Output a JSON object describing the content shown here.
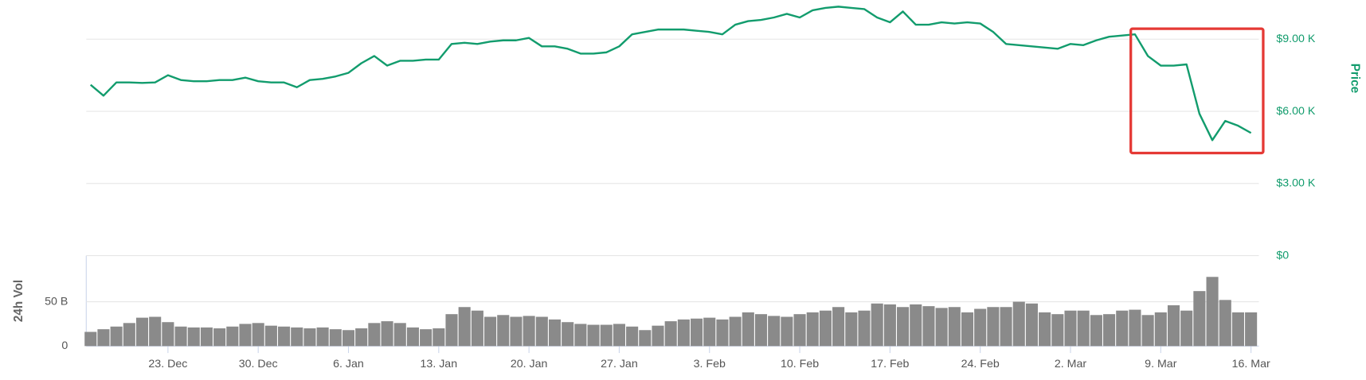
{
  "chart_data": {
    "type": "line",
    "categories": [
      "17. Dec",
      "18. Dec",
      "19. Dec",
      "20. Dec",
      "21. Dec",
      "22. Dec",
      "23. Dec",
      "24. Dec",
      "25. Dec",
      "26. Dec",
      "27. Dec",
      "28. Dec",
      "29. Dec",
      "30. Dec",
      "31. Dec",
      "1. Jan",
      "2. Jan",
      "3. Jan",
      "4. Jan",
      "5. Jan",
      "6. Jan",
      "7. Jan",
      "8. Jan",
      "9. Jan",
      "10. Jan",
      "11. Jan",
      "12. Jan",
      "13. Jan",
      "14. Jan",
      "15. Jan",
      "16. Jan",
      "17. Jan",
      "18. Jan",
      "19. Jan",
      "20. Jan",
      "21. Jan",
      "22. Jan",
      "23. Jan",
      "24. Jan",
      "25. Jan",
      "26. Jan",
      "27. Jan",
      "28. Jan",
      "29. Jan",
      "30. Jan",
      "31. Jan",
      "1. Feb",
      "2. Feb",
      "3. Feb",
      "4. Feb",
      "5. Feb",
      "6. Feb",
      "7. Feb",
      "8. Feb",
      "9. Feb",
      "10. Feb",
      "11. Feb",
      "12. Feb",
      "13. Feb",
      "14. Feb",
      "15. Feb",
      "16. Feb",
      "17. Feb",
      "18. Feb",
      "19. Feb",
      "20. Feb",
      "21. Feb",
      "22. Feb",
      "23. Feb",
      "24. Feb",
      "25. Feb",
      "26. Feb",
      "27. Feb",
      "28. Feb",
      "29. Feb",
      "1. Mar",
      "2. Mar",
      "3. Mar",
      "4. Mar",
      "5. Mar",
      "6. Mar",
      "7. Mar",
      "8. Mar",
      "9. Mar",
      "10. Mar",
      "11. Mar",
      "12. Mar",
      "13. Mar",
      "14. Mar",
      "15. Mar",
      "16. Mar"
    ],
    "xticks": [
      "23. Dec",
      "30. Dec",
      "6. Jan",
      "13. Jan",
      "20. Jan",
      "27. Jan",
      "3. Feb",
      "10. Feb",
      "17. Feb",
      "24. Feb",
      "2. Mar",
      "9. Mar",
      "16. Mar"
    ],
    "series": [
      {
        "name": "Price",
        "color": "#129c6d",
        "values": [
          7100,
          6650,
          7200,
          7200,
          7180,
          7200,
          7500,
          7300,
          7250,
          7250,
          7300,
          7300,
          7400,
          7250,
          7200,
          7200,
          7000,
          7300,
          7350,
          7450,
          7600,
          8000,
          8300,
          7900,
          8100,
          8100,
          8150,
          8150,
          8800,
          8850,
          8800,
          8900,
          8950,
          8950,
          9050,
          8700,
          8700,
          8600,
          8400,
          8400,
          8450,
          8700,
          9200,
          9300,
          9400,
          9400,
          9400,
          9350,
          9300,
          9200,
          9600,
          9750,
          9800,
          9900,
          10050,
          9900,
          10200,
          10300,
          10350,
          10300,
          10250,
          9900,
          9700,
          10150,
          9600,
          9600,
          9700,
          9650,
          9700,
          9650,
          9300,
          8800,
          8750,
          8700,
          8650,
          8600,
          8800,
          8750,
          8950,
          9100,
          9150,
          9200,
          8300,
          7900,
          7900,
          7950,
          5900,
          4800,
          5600,
          5400,
          5100
        ]
      },
      {
        "name": "24h Vol",
        "type": "bar",
        "axis": "y2",
        "color": "#8a8a8a",
        "values": [
          16,
          19,
          22,
          26,
          32,
          33,
          27,
          22,
          21,
          21,
          20,
          22,
          25,
          26,
          23,
          22,
          21,
          20,
          21,
          19,
          18,
          20,
          26,
          28,
          26,
          21,
          19,
          20,
          36,
          44,
          40,
          33,
          35,
          33,
          34,
          33,
          30,
          27,
          25,
          24,
          24,
          25,
          22,
          18,
          23,
          28,
          30,
          31,
          32,
          30,
          33,
          38,
          36,
          34,
          33,
          36,
          38,
          40,
          44,
          38,
          40,
          48,
          47,
          44,
          47,
          45,
          43,
          44,
          38,
          42,
          44,
          44,
          50,
          48,
          38,
          36,
          40,
          40,
          35,
          36,
          40,
          41,
          35,
          38,
          46,
          40,
          62,
          78,
          52,
          38,
          38
        ]
      }
    ],
    "ylim": [
      0,
      10500
    ],
    "yticks": [
      {
        "value": 0,
        "label": "$0"
      },
      {
        "value": 3000,
        "label": "$3.00 K"
      },
      {
        "value": 6000,
        "label": "$6.00 K"
      },
      {
        "value": 9000,
        "label": "$9.00 K"
      }
    ],
    "y2lim": [
      0,
      100
    ],
    "y2ticks": [
      0,
      {
        "value": 50,
        "label": "50 B"
      }
    ],
    "grid": true
  }
}
